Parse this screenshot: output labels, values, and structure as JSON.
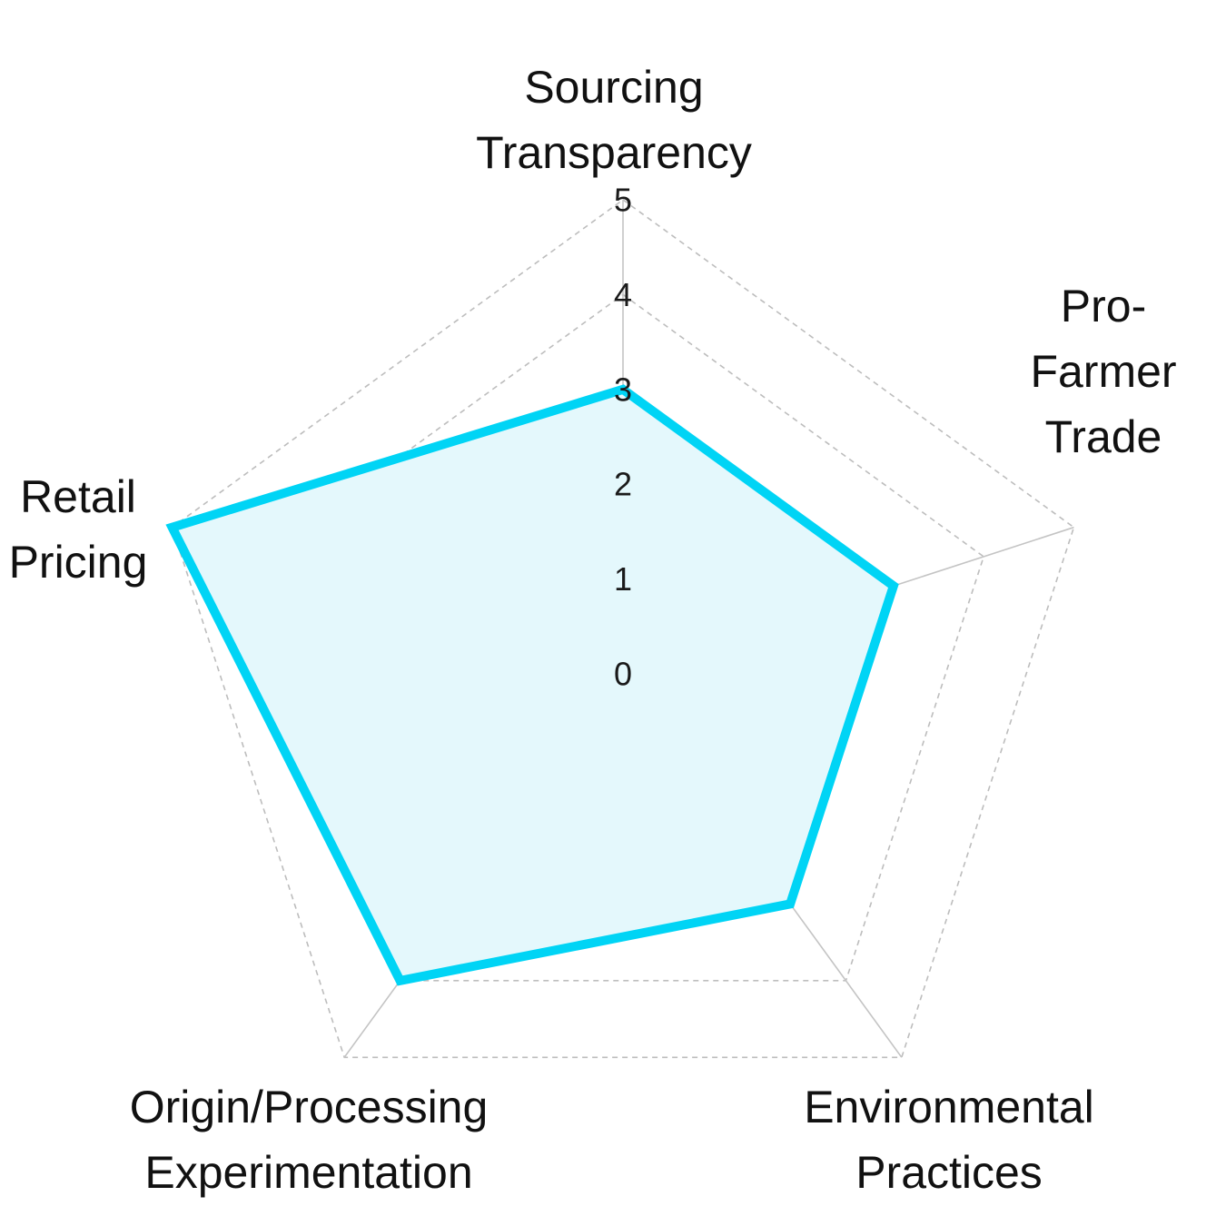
{
  "chart_data": {
    "type": "radar",
    "axes": [
      "Sourcing Transparency",
      "Pro-Farmer Trade",
      "Environmental Practices",
      "Origin/Processing Experimentation",
      "Retail Pricing"
    ],
    "axis_label_lines": [
      [
        "Sourcing",
        "Transparency"
      ],
      [
        "Pro-",
        "Farmer",
        "Trade"
      ],
      [
        "Environmental",
        "Practices"
      ],
      [
        "Origin/Processing",
        "Experimentation"
      ],
      [
        "Retail",
        "Pricing"
      ]
    ],
    "radial_ticks": [
      "0",
      "1",
      "2",
      "3",
      "4",
      "5"
    ],
    "rlim": [
      0,
      5
    ],
    "series": [
      {
        "values": [
          3,
          3,
          3,
          4,
          5
        ]
      }
    ],
    "grid": true,
    "grid_style": "dashed",
    "colors": {
      "series_stroke": "#00d4f5",
      "series_fill": "#e4f8fc",
      "grid": "#bdbdbd"
    }
  }
}
